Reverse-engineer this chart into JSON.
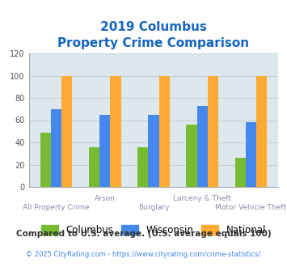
{
  "title_line1": "2019 Columbus",
  "title_line2": "Property Crime Comparison",
  "title_color": "#1565C0",
  "categories": [
    "All Property Crime",
    "Arson",
    "Burglary",
    "Larceny & Theft",
    "Motor Vehicle Theft"
  ],
  "columbus_values": [
    49,
    36,
    36,
    56,
    26
  ],
  "wisconsin_values": [
    70,
    65,
    65,
    73,
    58
  ],
  "national_values": [
    100,
    100,
    100,
    100,
    100
  ],
  "columbus_color": "#77BB33",
  "wisconsin_color": "#4488EE",
  "national_color": "#FFAA33",
  "ylim": [
    0,
    120
  ],
  "yticks": [
    0,
    20,
    40,
    60,
    80,
    100,
    120
  ],
  "xlabel_color": "#9988AA",
  "legend_labels": [
    "Columbus",
    "Wisconsin",
    "National"
  ],
  "footnote1": "Compared to U.S. average. (U.S. average equals 100)",
  "footnote2": "© 2025 CityRating.com - https://www.cityrating.com/crime-statistics/",
  "footnote1_color": "#333333",
  "footnote2_color": "#4488EE",
  "background_color": "#DDE8EE",
  "bar_width": 0.22,
  "grid_color": "#BBCCCC"
}
